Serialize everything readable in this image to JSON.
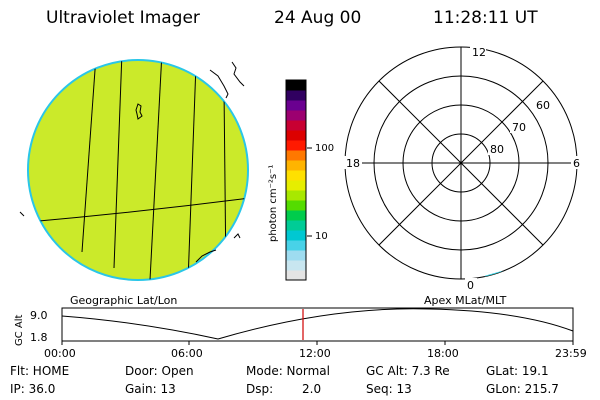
{
  "header": {
    "instrument": "Ultraviolet Imager",
    "date": "24 Aug 00",
    "time": "11:28:11 UT"
  },
  "colorbar": {
    "unit_label": "photon cm⁻²s⁻¹",
    "tick_100": "100",
    "tick_10": "10",
    "colors": [
      "#e4e4e4",
      "#c8e6f0",
      "#9edcf0",
      "#48d2e8",
      "#00c8d2",
      "#00cc96",
      "#00cc4c",
      "#54dc00",
      "#a8e800",
      "#e6ee00",
      "#ffe000",
      "#ffb400",
      "#ff7800",
      "#ff1a00",
      "#dc0000",
      "#c80032",
      "#9c0070",
      "#6a0090",
      "#300060",
      "#000000"
    ]
  },
  "geo_panel": {
    "label": "Geographic Lat/Lon",
    "fill_color": "#cbea2a"
  },
  "polar_panel": {
    "label": "Apex MLat/MLT",
    "mlt_12": "12",
    "mlt_18": "18",
    "mlt_6": "6",
    "mlt_0": "0",
    "lat_60": "60",
    "lat_70": "70",
    "lat_80": "80"
  },
  "altitude_plot": {
    "ylabel": "GC Alt",
    "y_ticks": [
      "9.0",
      "1.8"
    ],
    "x_ticks": [
      "00:00",
      "06:00",
      "12:00",
      "18:00",
      "23:59"
    ],
    "current_time_color": "#d00000"
  },
  "status": {
    "flt": "Flt: HOME",
    "ip": "IP: 36.0",
    "door": "Door: Open",
    "gain": "Gain: 13",
    "mode": "Mode: Normal",
    "dsp": "Dsp:",
    "dsp_val": "2.0",
    "gc_alt": "GC Alt: 7.3 Re",
    "seq": "Seq: 13",
    "glat": "GLat: 19.1",
    "glon": "GLon: 215.7"
  }
}
